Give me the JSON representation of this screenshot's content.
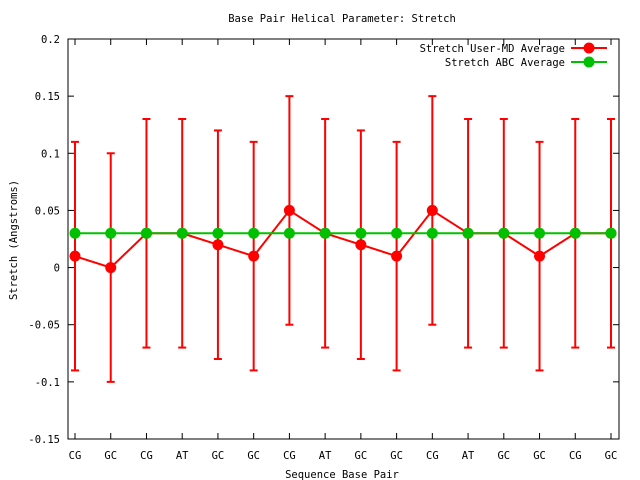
{
  "chart_data": {
    "type": "line",
    "title": "Base Pair Helical Parameter: Stretch",
    "xlabel": "Sequence Base Pair",
    "ylabel": "Stretch (Angstroms)",
    "categories": [
      "CG",
      "GC",
      "CG",
      "AT",
      "GC",
      "GC",
      "CG",
      "AT",
      "GC",
      "GC",
      "CG",
      "AT",
      "GC",
      "GC",
      "CG",
      "GC"
    ],
    "ylim": [
      -0.15,
      0.2
    ],
    "yticks": [
      "-0.15",
      "-0.1",
      "-0.05",
      "0",
      "0.05",
      "0.1",
      "0.15",
      "0.2"
    ],
    "legend_position": "top-right",
    "grid": false,
    "series": [
      {
        "name": "Stretch User-MD Average",
        "color": "#ff0000",
        "values": [
          0.01,
          0.0,
          0.03,
          0.03,
          0.02,
          0.01,
          0.05,
          0.03,
          0.02,
          0.01,
          0.05,
          0.03,
          0.03,
          0.01,
          0.03,
          0.03
        ],
        "error_low": [
          -0.09,
          -0.1,
          -0.07,
          -0.07,
          -0.08,
          -0.09,
          -0.05,
          -0.07,
          -0.08,
          -0.09,
          -0.05,
          -0.07,
          -0.07,
          -0.09,
          -0.07,
          -0.07
        ],
        "error_high": [
          0.11,
          0.1,
          0.13,
          0.13,
          0.12,
          0.11,
          0.15,
          0.13,
          0.12,
          0.11,
          0.15,
          0.13,
          0.13,
          0.11,
          0.13,
          0.13
        ]
      },
      {
        "name": "Stretch ABC Average",
        "color": "#00c000",
        "values": [
          0.03,
          0.03,
          0.03,
          0.03,
          0.03,
          0.03,
          0.03,
          0.03,
          0.03,
          0.03,
          0.03,
          0.03,
          0.03,
          0.03,
          0.03,
          0.03
        ]
      }
    ]
  }
}
